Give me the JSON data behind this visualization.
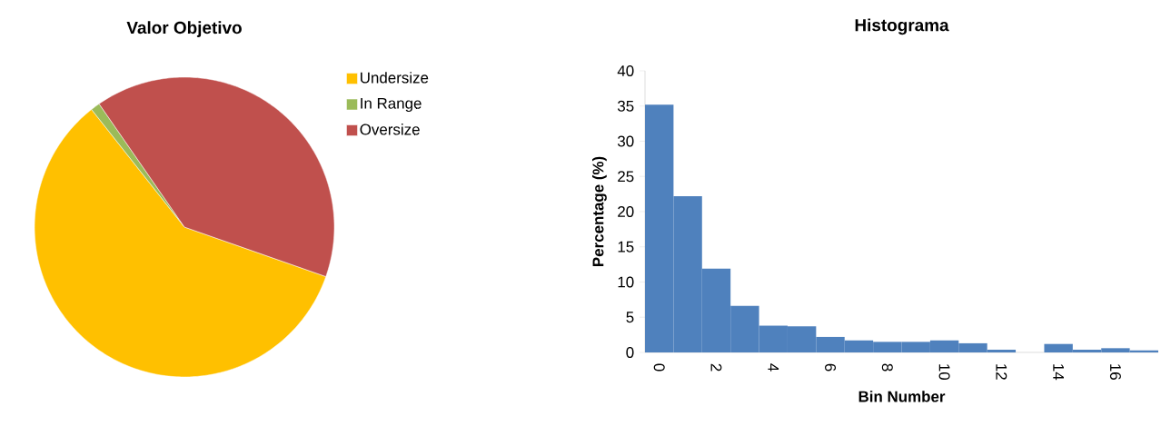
{
  "chart_data": [
    {
      "type": "pie",
      "title": "Valor Objetivo",
      "categories": [
        "Undersize",
        "In Range",
        "Oversize"
      ],
      "values": [
        59,
        1,
        40
      ],
      "colors": [
        "#ffc000",
        "#9bbb59",
        "#c0504d"
      ],
      "legend": "right"
    },
    {
      "type": "histogram",
      "title": "Histograma",
      "xlabel": "Bin Number",
      "ylabel": "Percentage (%)",
      "bins": [
        -0.5,
        0.5,
        1.5,
        2.5,
        3.5,
        4.5,
        5.5,
        6.5,
        7.5,
        8.5,
        9.5,
        10.5,
        11.5,
        12.5,
        13.5,
        14.5,
        15.5,
        16.5,
        17.5
      ],
      "values": [
        35.2,
        22.2,
        11.9,
        6.6,
        3.8,
        3.7,
        2.2,
        1.7,
        1.5,
        1.5,
        1.7,
        1.3,
        0.4,
        0,
        1.2,
        0.4,
        0.6,
        0.3
      ],
      "color": "#4f81bd",
      "xlim": [
        -0.5,
        17.5
      ],
      "ylim": [
        0,
        40
      ],
      "xticks": [
        0,
        2,
        4,
        6,
        8,
        10,
        12,
        14,
        16
      ],
      "yticks": [
        0,
        5,
        10,
        15,
        20,
        25,
        30,
        35,
        40
      ]
    }
  ]
}
